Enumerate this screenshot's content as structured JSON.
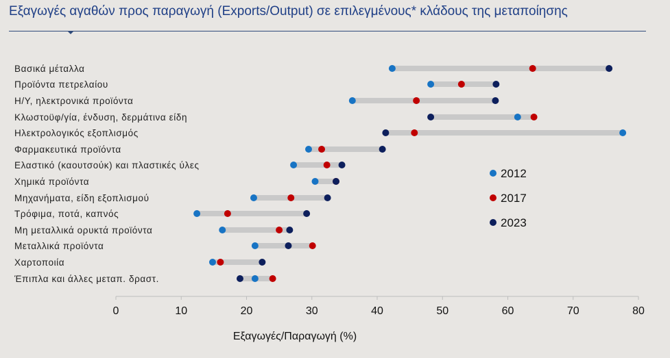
{
  "title": "Εξαγωγές αγαθών προς παραγωγή (Exports/Output) σε επιλεγμένους* κλάδους της μεταποίησης",
  "colors": {
    "2012": "#1874c4",
    "2017": "#c00000",
    "2023": "#0d1f5c",
    "range": "#c9c9c9",
    "background": "#e8e6e3"
  },
  "chart_data": {
    "type": "dumbbell",
    "title": "Εξαγωγές αγαθών προς παραγωγή (Exports/Output) σε επιλεγμένους* κλάδους της μεταποίησης",
    "xlabel": "Εξαγωγές/Παραγωγή (%)",
    "ylabel": "",
    "xlim": [
      0,
      80
    ],
    "xticks": [
      0,
      10,
      20,
      30,
      40,
      50,
      60,
      70,
      80
    ],
    "legend_position": "right",
    "categories": [
      "Βασικά μέταλλα",
      "Προϊόντα πετρελαίου",
      "Η/Υ, ηλεκτρονικά προϊόντα",
      "Κλωστοϋφ/γία, ένδυση, δερμάτινα είδη",
      "Ηλεκτρολογικός εξοπλισμός",
      "Φαρμακευτικά προϊόντα",
      "Ελαστικό (καουτσούκ) και πλαστικές ύλες",
      "Χημικά προϊόντα",
      "Μηχανήματα, είδη εξοπλισμού",
      "Τρόφιμα, ποτά, καπνός",
      "Μη μεταλλικά ορυκτά προϊόντα",
      "Μεταλλικά προϊόντα",
      "Χαρτοποιία",
      "Έπιπλα και άλλες μεταπ. δραστ."
    ],
    "series": [
      {
        "name": "2012",
        "values": [
          42.3,
          48.2,
          36.2,
          61.5,
          77.6,
          29.5,
          27.2,
          30.5,
          21.1,
          12.4,
          16.3,
          21.3,
          14.8,
          21.3
        ]
      },
      {
        "name": "2017",
        "values": [
          63.8,
          52.9,
          46.0,
          64.0,
          45.7,
          31.5,
          32.3,
          33.7,
          26.8,
          17.1,
          25.0,
          30.1,
          16.0,
          24.0
        ]
      },
      {
        "name": "2023",
        "values": [
          75.5,
          58.2,
          58.1,
          48.2,
          41.3,
          40.8,
          34.6,
          33.7,
          32.4,
          29.2,
          26.6,
          26.4,
          22.4,
          19.0
        ]
      }
    ]
  }
}
